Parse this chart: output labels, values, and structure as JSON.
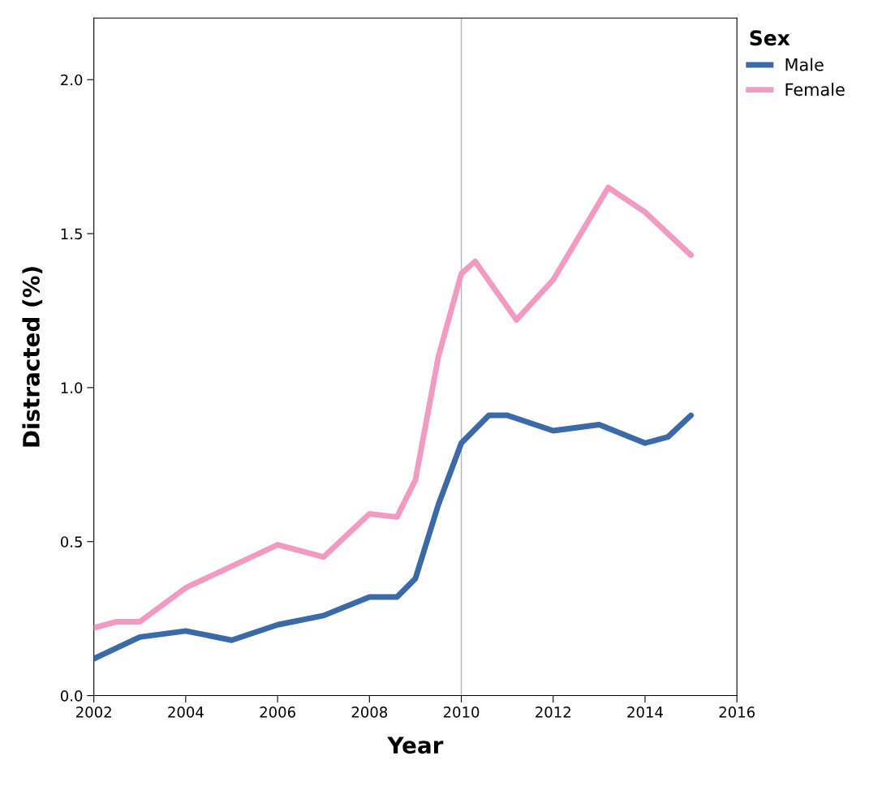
{
  "chart_data": {
    "type": "line",
    "xlabel": "Year",
    "ylabel": "Distracted (%)",
    "legend_title": "Sex",
    "legend": "top right",
    "xlim": [
      2002,
      2016
    ],
    "xticks": [
      2002,
      2004,
      2006,
      2008,
      2010,
      2012,
      2014,
      2016
    ],
    "ylim": [
      0,
      2.2
    ],
    "yticks": [
      {
        "value": 0,
        "label": "0.0"
      },
      {
        "value": 0.5,
        "label": "0.5"
      },
      {
        "value": 1.0,
        "label": "1.0"
      },
      {
        "value": 1.5,
        "label": "1.5"
      },
      {
        "value": 2.0,
        "label": "2.0"
      }
    ],
    "grid": false,
    "marker": "none",
    "line_style": "solid",
    "ref_lines": [
      {
        "axis": "x",
        "value": 2010,
        "color": "#b4b4b4",
        "line_style": "solid"
      }
    ],
    "series": [
      {
        "name": "Male",
        "color": "#3b6aa8",
        "x": [
          2002,
          2003,
          2004,
          2005,
          2006,
          2007,
          2008,
          2008.6,
          2009,
          2009.5,
          2010,
          2010.6,
          2011,
          2012,
          2013,
          2014,
          2014.5,
          2015
        ],
        "values": [
          0.12,
          0.19,
          0.21,
          0.18,
          0.23,
          0.26,
          0.32,
          0.32,
          0.38,
          0.62,
          0.82,
          0.91,
          0.91,
          0.86,
          0.88,
          0.82,
          0.84,
          0.91
        ]
      },
      {
        "name": "Female",
        "color": "#f29ac2",
        "x": [
          2002,
          2002.5,
          2003,
          2004,
          2005,
          2006,
          2007,
          2008,
          2008.6,
          2009,
          2009.5,
          2010,
          2010.3,
          2011.2,
          2012,
          2013.2,
          2014,
          2015
        ],
        "values": [
          0.22,
          0.24,
          0.24,
          0.35,
          0.42,
          0.49,
          0.45,
          0.59,
          0.58,
          0.7,
          1.1,
          1.37,
          1.41,
          1.22,
          1.35,
          1.65,
          1.57,
          1.43
        ]
      }
    ]
  }
}
